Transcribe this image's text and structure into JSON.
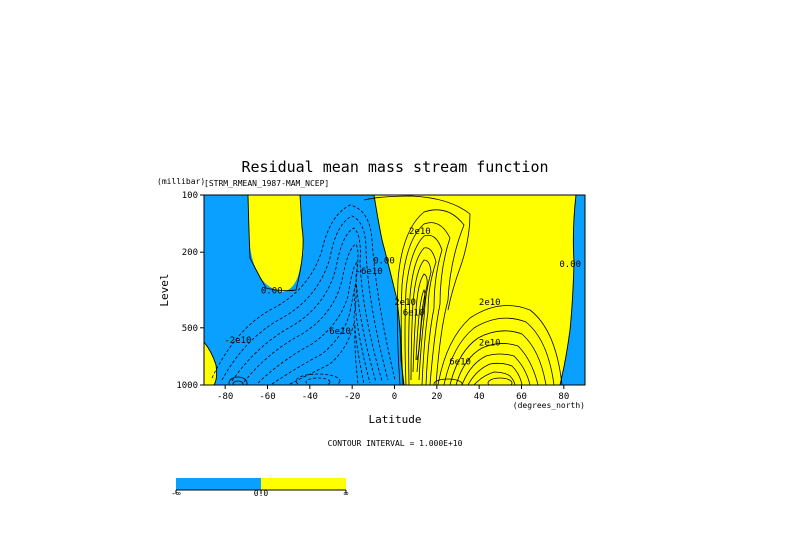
{
  "chart_data": {
    "type": "contour",
    "title": "Residual mean mass stream function",
    "dataset_label": "[STRM_RMEAN_1987-MAM_NCEP]",
    "xlabel": "Latitude",
    "x_units": "(degrees_north)",
    "ylabel": "Level",
    "y_units": "(millibar)",
    "xlim": [
      -90,
      90
    ],
    "ylim": [
      1000,
      100
    ],
    "y_scale": "log",
    "x_ticks": [
      -80,
      -60,
      -40,
      -20,
      0,
      20,
      40,
      60,
      80
    ],
    "x_tick_labels": [
      "-80",
      "-60",
      "-40",
      "-20",
      "0",
      "20",
      "40",
      "60",
      "80"
    ],
    "y_ticks": [
      100,
      200,
      500,
      1000
    ],
    "y_tick_labels": [
      "100",
      "200",
      "500",
      "1000"
    ],
    "contour_interval_text": "CONTOUR INTERVAL = 1.000E+10",
    "fill_negative_color": "#0aa0ff",
    "fill_positive_color": "#ffff00",
    "contour_labels": [
      {
        "text": "0.00",
        "lat": -58,
        "p": 330
      },
      {
        "text": "-2e10",
        "lat": -74,
        "p": 600
      },
      {
        "text": "-6e10",
        "lat": -27,
        "p": 540
      },
      {
        "text": "-6e10",
        "lat": -12,
        "p": 260
      },
      {
        "text": "0.00",
        "lat": -5,
        "p": 230
      },
      {
        "text": "2e10",
        "lat": 12,
        "p": 160
      },
      {
        "text": "2e10",
        "lat": 5,
        "p": 380
      },
      {
        "text": "6e10",
        "lat": 9,
        "p": 430
      },
      {
        "text": "2e10",
        "lat": 45,
        "p": 380
      },
      {
        "text": "2e10",
        "lat": 45,
        "p": 620
      },
      {
        "text": "6e10",
        "lat": 31,
        "p": 780
      },
      {
        "text": "0.00",
        "lat": 83,
        "p": 240
      }
    ],
    "colorbar": {
      "segments": [
        "#0aa0ff",
        "#ffff00"
      ],
      "tick_labels": [
        "-∞",
        "0.0",
        "∞"
      ]
    }
  }
}
